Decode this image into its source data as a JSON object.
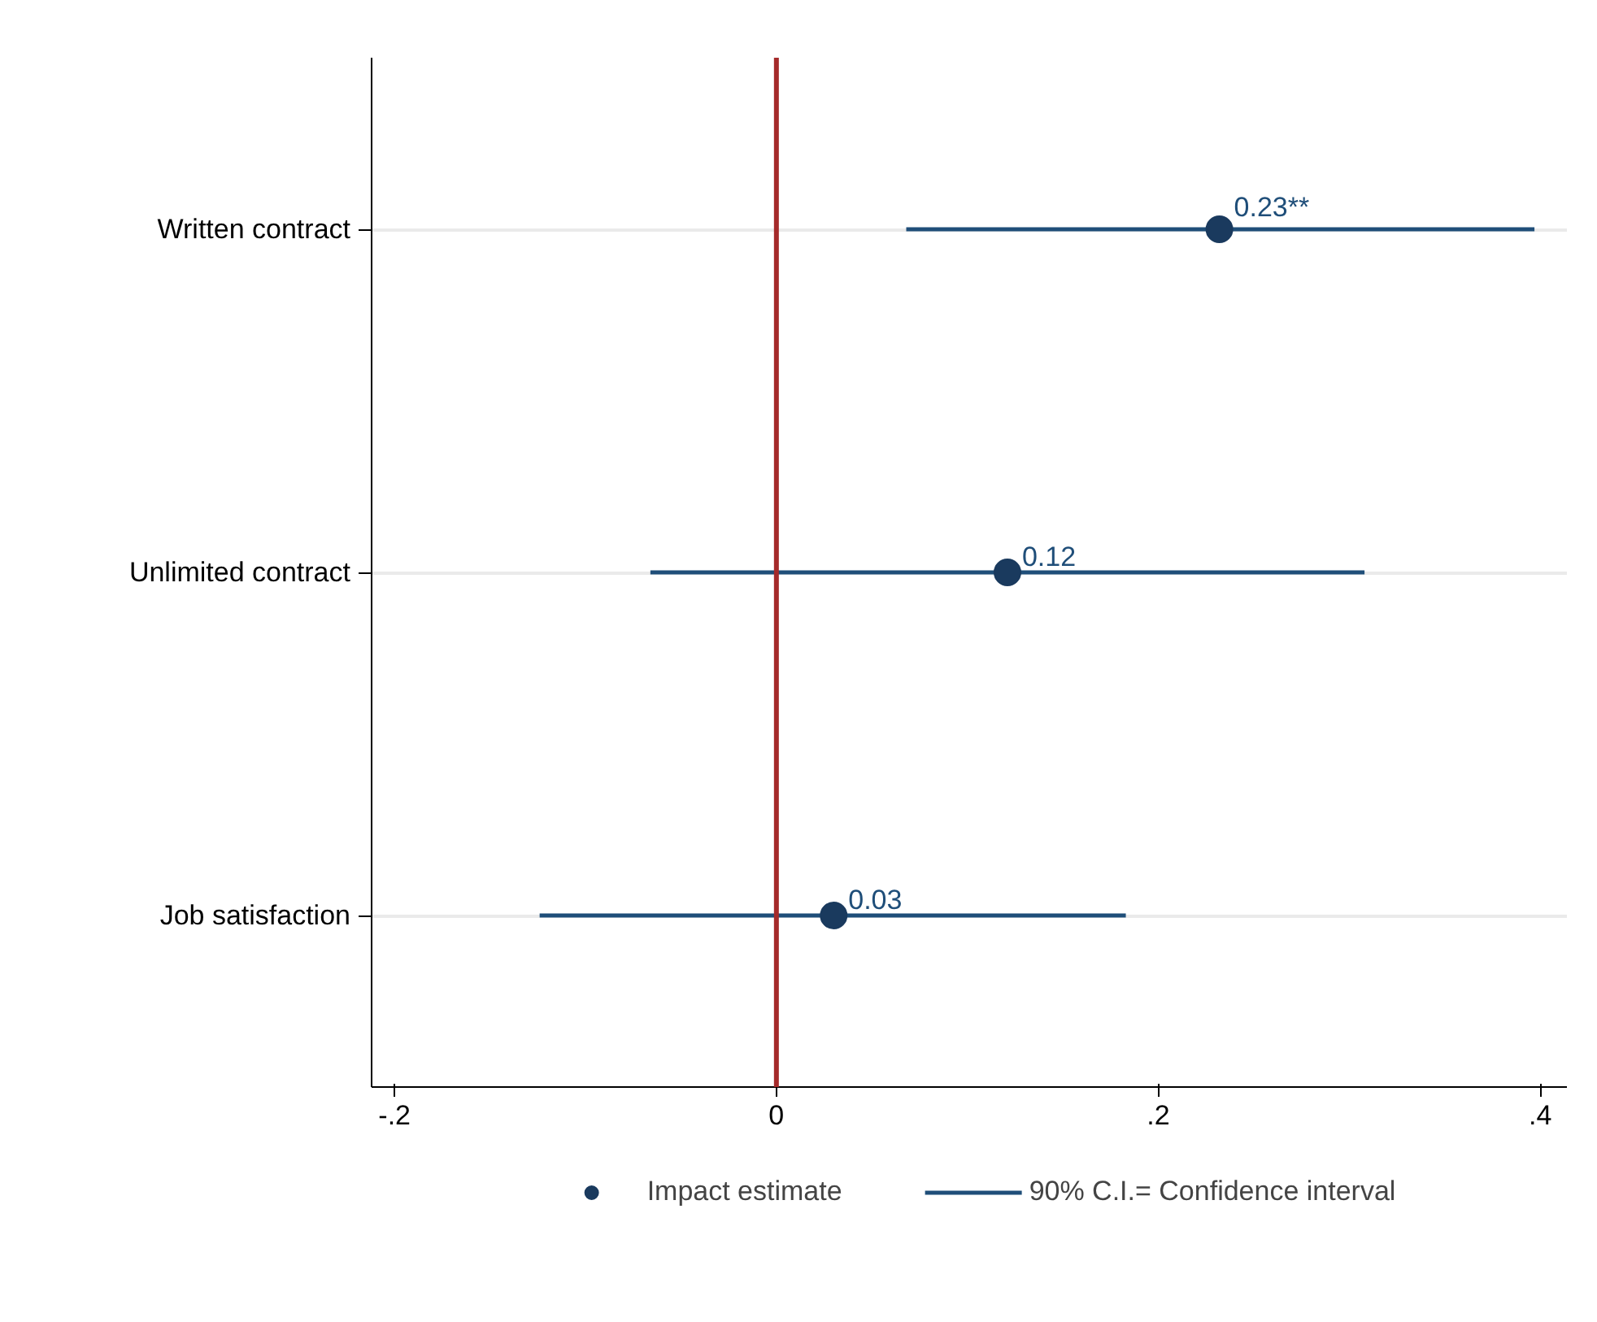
{
  "chart_data": {
    "type": "scatter",
    "orientation": "horizontal",
    "categories": [
      "Written contract",
      "Unlimited contract",
      "Job satisfaction"
    ],
    "series": [
      {
        "name": "Impact estimate",
        "color": "#1a3a5e",
        "values": [
          0.232,
          0.121,
          0.03
        ],
        "value_labels": [
          "0.23**",
          "0.12",
          "0.03"
        ],
        "errors": [
          [
            0.068,
            0.397
          ],
          [
            -0.066,
            0.308
          ],
          [
            -0.124,
            0.183
          ]
        ]
      }
    ],
    "annotations": [
      "90% C.I.= Confidence interval"
    ],
    "xlim": [
      -0.212,
      0.414
    ],
    "xticks": [
      {
        "value": -0.2,
        "label": "-.2"
      },
      0,
      {
        "value": 0.2,
        "label": ".2"
      },
      {
        "value": 0.4,
        "label": ".4"
      }
    ],
    "ref_lines": [
      {
        "axis": "x",
        "value": 0,
        "color": "#a52a2a"
      }
    ],
    "grid": "y",
    "legend": "bottom",
    "marker": "circle"
  }
}
